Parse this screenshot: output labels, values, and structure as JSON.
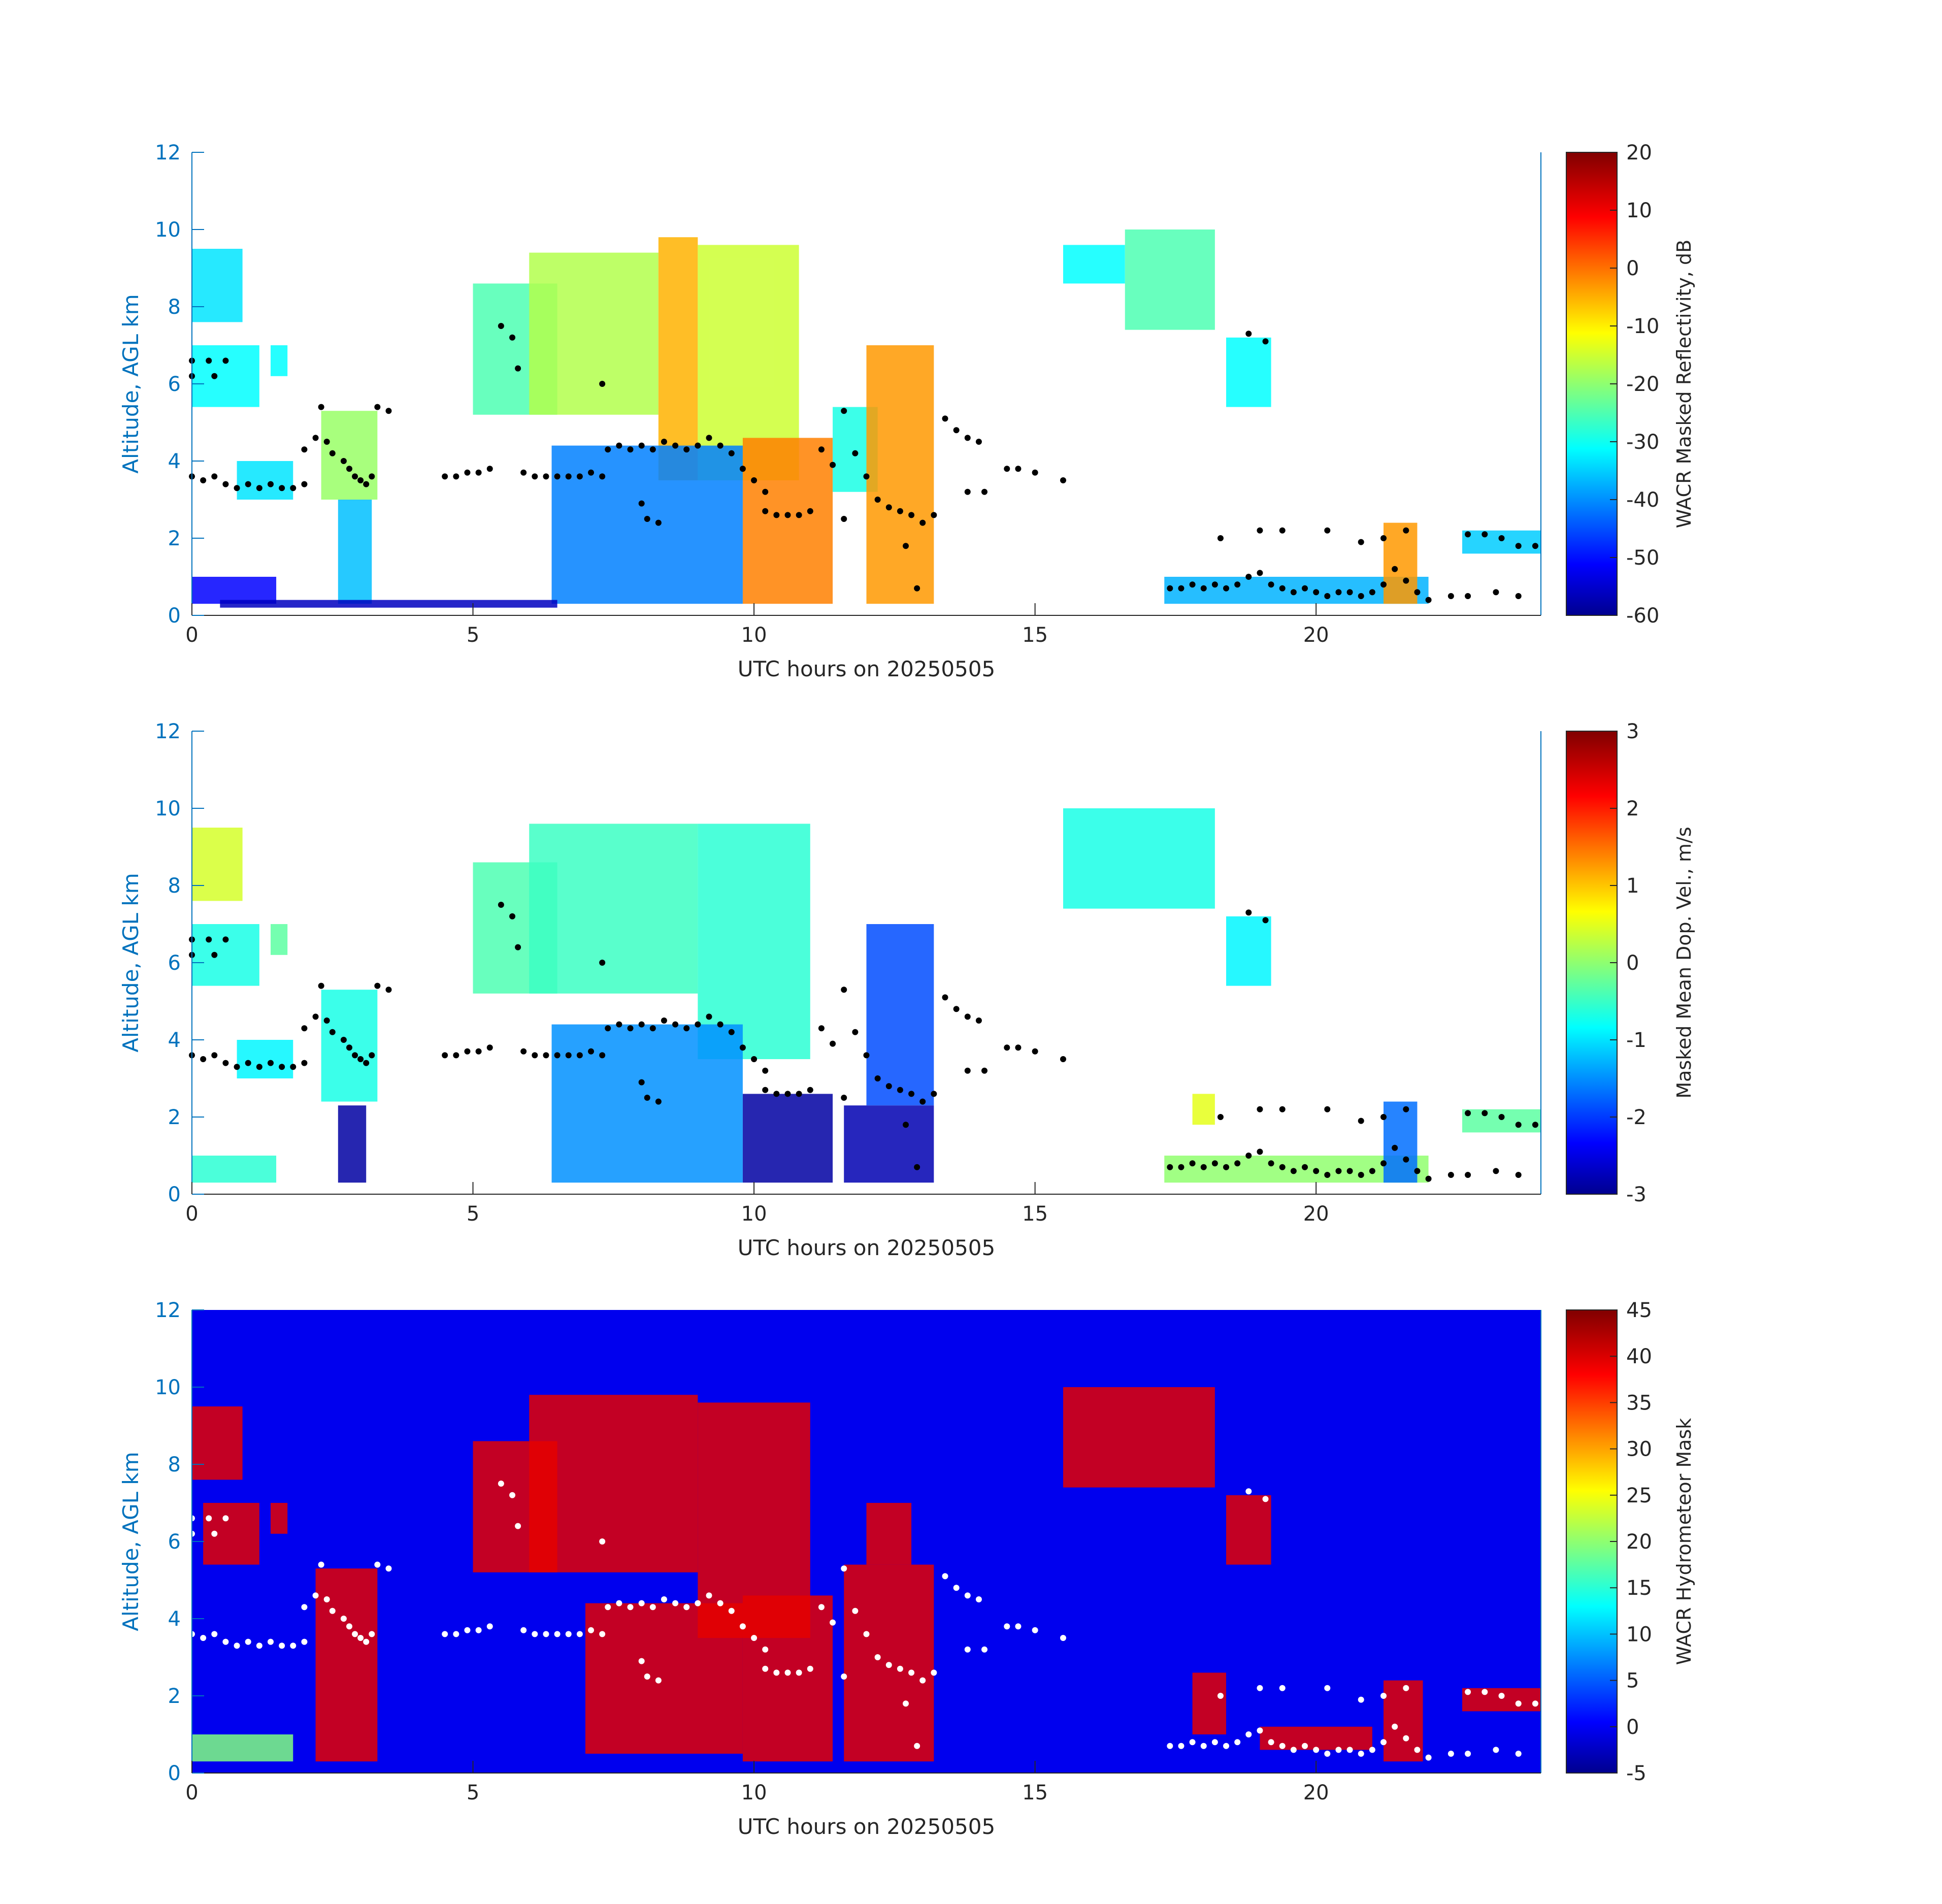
{
  "chart_data": [
    {
      "type": "heatmap",
      "xlabel": "UTC hours on 20250505",
      "ylabel": "Altitude, AGL km",
      "xlim": [
        0,
        24
      ],
      "ylim": [
        0,
        12
      ],
      "xticks": [
        "0",
        "5",
        "10",
        "15",
        "20"
      ],
      "yticks": [
        "0",
        "2",
        "4",
        "6",
        "8",
        "10",
        "12"
      ],
      "background": "white",
      "colorbar": {
        "label": "WACR Masked Reflectivity, dB",
        "colormap": "jet",
        "range": [
          -60,
          20
        ],
        "ticks": [
          "20",
          "10",
          "0",
          "-10",
          "-20",
          "-30",
          "-40",
          "-50",
          "-60"
        ]
      },
      "echo_regions": [
        {
          "x": [
            0,
            0.9
          ],
          "y": [
            7.6,
            9.5
          ],
          "value": -32
        },
        {
          "x": [
            0,
            1.2
          ],
          "y": [
            5.4,
            7.0
          ],
          "value": -30
        },
        {
          "x": [
            1.4,
            1.7
          ],
          "y": [
            6.2,
            7.0
          ],
          "value": -30
        },
        {
          "x": [
            0.8,
            1.8
          ],
          "y": [
            3.0,
            4.0
          ],
          "value": -32
        },
        {
          "x": [
            2.3,
            3.3
          ],
          "y": [
            3.0,
            5.3
          ],
          "value": -18
        },
        {
          "x": [
            2.6,
            3.2
          ],
          "y": [
            0.3,
            3.0
          ],
          "value": -35
        },
        {
          "x": [
            0,
            1.5
          ],
          "y": [
            0.3,
            1.0
          ],
          "value": -50
        },
        {
          "x": [
            5.0,
            6.5
          ],
          "y": [
            5.2,
            8.6
          ],
          "value": -24
        },
        {
          "x": [
            6.0,
            8.3
          ],
          "y": [
            5.2,
            9.4
          ],
          "value": -16
        },
        {
          "x": [
            8.3,
            9.0
          ],
          "y": [
            3.5,
            9.8
          ],
          "value": -4
        },
        {
          "x": [
            9.0,
            10.8
          ],
          "y": [
            3.5,
            9.6
          ],
          "value": -14
        },
        {
          "x": [
            9.8,
            11.4
          ],
          "y": [
            0.3,
            4.6
          ],
          "value": 0
        },
        {
          "x": [
            11.4,
            12.2
          ],
          "y": [
            3.2,
            5.4
          ],
          "value": -28
        },
        {
          "x": [
            12.0,
            13.2
          ],
          "y": [
            0.3,
            7.0
          ],
          "value": -2
        },
        {
          "x": [
            6.4,
            9.8
          ],
          "y": [
            0.3,
            4.4
          ],
          "value": -40
        },
        {
          "x": [
            15.5,
            16.6
          ],
          "y": [
            8.6,
            9.6
          ],
          "value": -30
        },
        {
          "x": [
            16.6,
            18.2
          ],
          "y": [
            7.4,
            10.0
          ],
          "value": -24
        },
        {
          "x": [
            18.4,
            19.2
          ],
          "y": [
            5.4,
            7.2
          ],
          "value": -30
        },
        {
          "x": [
            17.3,
            22.0
          ],
          "y": [
            0.3,
            1.0
          ],
          "value": -36
        },
        {
          "x": [
            21.2,
            21.8
          ],
          "y": [
            0.3,
            2.4
          ],
          "value": -2
        },
        {
          "x": [
            22.6,
            24.0
          ],
          "y": [
            1.6,
            2.2
          ],
          "value": -34
        },
        {
          "x": [
            0.5,
            6.5
          ],
          "y": [
            0.2,
            0.4
          ],
          "value": -55
        }
      ]
    },
    {
      "type": "heatmap",
      "xlabel": "UTC hours on 20250505",
      "ylabel": "Altitude, AGL km",
      "xlim": [
        0,
        24
      ],
      "ylim": [
        0,
        12
      ],
      "xticks": [
        "0",
        "5",
        "10",
        "15",
        "20"
      ],
      "yticks": [
        "0",
        "2",
        "4",
        "6",
        "8",
        "10",
        "12"
      ],
      "background": "white",
      "colorbar": {
        "label": "Masked Mean Dop. Vel., m/s",
        "colormap": "jet",
        "range": [
          -3,
          3
        ],
        "ticks": [
          "3",
          "2",
          "1",
          "0",
          "-1",
          "-2",
          "-3"
        ]
      },
      "echo_regions": [
        {
          "x": [
            0,
            0.9
          ],
          "y": [
            7.6,
            9.5
          ],
          "value": 0.5
        },
        {
          "x": [
            0,
            1.2
          ],
          "y": [
            5.4,
            7.0
          ],
          "value": -0.6
        },
        {
          "x": [
            1.4,
            1.7
          ],
          "y": [
            6.2,
            7.0
          ],
          "value": -0.2
        },
        {
          "x": [
            0.8,
            1.8
          ],
          "y": [
            3.0,
            4.0
          ],
          "value": -0.8
        },
        {
          "x": [
            2.3,
            3.3
          ],
          "y": [
            2.4,
            5.3
          ],
          "value": -0.6
        },
        {
          "x": [
            2.6,
            3.1
          ],
          "y": [
            0.3,
            2.3
          ],
          "value": -2.8
        },
        {
          "x": [
            0,
            1.5
          ],
          "y": [
            0.3,
            1.0
          ],
          "value": -0.5
        },
        {
          "x": [
            5.0,
            6.5
          ],
          "y": [
            5.2,
            8.6
          ],
          "value": -0.3
        },
        {
          "x": [
            6.0,
            9.0
          ],
          "y": [
            5.2,
            9.6
          ],
          "value": -0.4
        },
        {
          "x": [
            9.0,
            11.0
          ],
          "y": [
            3.5,
            9.6
          ],
          "value": -0.5
        },
        {
          "x": [
            9.8,
            11.4
          ],
          "y": [
            0.3,
            2.6
          ],
          "value": -2.8
        },
        {
          "x": [
            11.6,
            13.2
          ],
          "y": [
            0.3,
            2.3
          ],
          "value": -2.7
        },
        {
          "x": [
            12.0,
            13.2
          ],
          "y": [
            2.3,
            7.0
          ],
          "value": -1.8
        },
        {
          "x": [
            6.4,
            9.8
          ],
          "y": [
            0.3,
            4.4
          ],
          "value": -1.4
        },
        {
          "x": [
            15.5,
            18.2
          ],
          "y": [
            7.4,
            10.0
          ],
          "value": -0.6
        },
        {
          "x": [
            18.4,
            19.2
          ],
          "y": [
            5.4,
            7.2
          ],
          "value": -0.8
        },
        {
          "x": [
            17.3,
            22.0
          ],
          "y": [
            0.3,
            1.0
          ],
          "value": 0.1
        },
        {
          "x": [
            17.8,
            18.2
          ],
          "y": [
            1.8,
            2.6
          ],
          "value": 0.6
        },
        {
          "x": [
            21.2,
            21.8
          ],
          "y": [
            0.3,
            2.4
          ],
          "value": -1.6
        },
        {
          "x": [
            22.6,
            24.0
          ],
          "y": [
            1.6,
            2.2
          ],
          "value": -0.2
        }
      ]
    },
    {
      "type": "heatmap",
      "xlabel": "UTC hours on 20250505",
      "ylabel": "Altitude, AGL km",
      "xlim": [
        0,
        24
      ],
      "ylim": [
        0,
        12
      ],
      "xticks": [
        "0",
        "5",
        "10",
        "15",
        "20"
      ],
      "yticks": [
        "0",
        "2",
        "4",
        "6",
        "8",
        "10",
        "12"
      ],
      "background": "#0000ee",
      "colorbar": {
        "label": "WACR Hydrometeor Mask",
        "colormap": "jet",
        "range": [
          -5,
          45
        ],
        "ticks": [
          "45",
          "40",
          "35",
          "30",
          "25",
          "20",
          "15",
          "10",
          "5",
          "0",
          "-5"
        ]
      },
      "echo_regions": [
        {
          "x": [
            0,
            0.9
          ],
          "y": [
            7.6,
            9.5
          ],
          "value": 40
        },
        {
          "x": [
            0.2,
            1.2
          ],
          "y": [
            5.4,
            7.0
          ],
          "value": 40
        },
        {
          "x": [
            1.4,
            1.7
          ],
          "y": [
            6.2,
            7.0
          ],
          "value": 40
        },
        {
          "x": [
            2.2,
            3.3
          ],
          "y": [
            0.3,
            5.3
          ],
          "value": 40
        },
        {
          "x": [
            5.0,
            6.5
          ],
          "y": [
            5.2,
            8.6
          ],
          "value": 40
        },
        {
          "x": [
            6.0,
            9.0
          ],
          "y": [
            5.2,
            9.8
          ],
          "value": 40
        },
        {
          "x": [
            9.0,
            11.0
          ],
          "y": [
            3.5,
            9.6
          ],
          "value": 40
        },
        {
          "x": [
            9.8,
            11.4
          ],
          "y": [
            0.3,
            4.6
          ],
          "value": 40
        },
        {
          "x": [
            11.6,
            13.2
          ],
          "y": [
            0.3,
            5.4
          ],
          "value": 40
        },
        {
          "x": [
            12.0,
            12.8
          ],
          "y": [
            5.4,
            7.0
          ],
          "value": 40
        },
        {
          "x": [
            7.0,
            9.8
          ],
          "y": [
            0.5,
            4.4
          ],
          "value": 40
        },
        {
          "x": [
            15.5,
            18.2
          ],
          "y": [
            7.4,
            10.0
          ],
          "value": 40
        },
        {
          "x": [
            18.4,
            19.2
          ],
          "y": [
            5.4,
            7.2
          ],
          "value": 40
        },
        {
          "x": [
            17.8,
            18.4
          ],
          "y": [
            1.0,
            2.6
          ],
          "value": 40
        },
        {
          "x": [
            19.0,
            21.0
          ],
          "y": [
            0.6,
            1.2
          ],
          "value": 40
        },
        {
          "x": [
            21.2,
            21.9
          ],
          "y": [
            0.3,
            2.4
          ],
          "value": 40
        },
        {
          "x": [
            22.6,
            24.0
          ],
          "y": [
            1.6,
            2.2
          ],
          "value": 40
        },
        {
          "x": [
            0,
            1.8
          ],
          "y": [
            0.3,
            1.0
          ],
          "value": 20
        }
      ]
    }
  ],
  "overlay_points": [
    {
      "x": 0.0,
      "y": 3.6
    },
    {
      "x": 0.2,
      "y": 3.5
    },
    {
      "x": 0.4,
      "y": 3.6
    },
    {
      "x": 0.6,
      "y": 3.4
    },
    {
      "x": 0.8,
      "y": 3.3
    },
    {
      "x": 1.0,
      "y": 3.4
    },
    {
      "x": 1.2,
      "y": 3.3
    },
    {
      "x": 1.4,
      "y": 3.4
    },
    {
      "x": 1.6,
      "y": 3.3
    },
    {
      "x": 1.8,
      "y": 3.3
    },
    {
      "x": 2.0,
      "y": 3.4
    },
    {
      "x": 0.0,
      "y": 6.6
    },
    {
      "x": 0.3,
      "y": 6.6
    },
    {
      "x": 0.6,
      "y": 6.6
    },
    {
      "x": 0.0,
      "y": 6.2
    },
    {
      "x": 0.4,
      "y": 6.2
    },
    {
      "x": 2.0,
      "y": 4.3
    },
    {
      "x": 2.2,
      "y": 4.6
    },
    {
      "x": 2.4,
      "y": 4.5
    },
    {
      "x": 2.5,
      "y": 4.2
    },
    {
      "x": 2.7,
      "y": 4.0
    },
    {
      "x": 2.8,
      "y": 3.8
    },
    {
      "x": 2.9,
      "y": 3.6
    },
    {
      "x": 3.0,
      "y": 3.5
    },
    {
      "x": 3.1,
      "y": 3.4
    },
    {
      "x": 3.2,
      "y": 3.6
    },
    {
      "x": 3.3,
      "y": 5.4
    },
    {
      "x": 3.5,
      "y": 5.3
    },
    {
      "x": 2.3,
      "y": 5.4
    },
    {
      "x": 4.5,
      "y": 3.6
    },
    {
      "x": 4.7,
      "y": 3.6
    },
    {
      "x": 4.9,
      "y": 3.7
    },
    {
      "x": 5.1,
      "y": 3.7
    },
    {
      "x": 5.3,
      "y": 3.8
    },
    {
      "x": 5.5,
      "y": 7.5
    },
    {
      "x": 5.7,
      "y": 7.2
    },
    {
      "x": 5.8,
      "y": 6.4
    },
    {
      "x": 5.9,
      "y": 3.7
    },
    {
      "x": 6.1,
      "y": 3.6
    },
    {
      "x": 6.3,
      "y": 3.6
    },
    {
      "x": 6.5,
      "y": 3.6
    },
    {
      "x": 6.7,
      "y": 3.6
    },
    {
      "x": 6.9,
      "y": 3.6
    },
    {
      "x": 7.1,
      "y": 3.7
    },
    {
      "x": 7.3,
      "y": 3.6
    },
    {
      "x": 7.3,
      "y": 6.0
    },
    {
      "x": 7.4,
      "y": 4.3
    },
    {
      "x": 7.6,
      "y": 4.4
    },
    {
      "x": 7.8,
      "y": 4.3
    },
    {
      "x": 8.0,
      "y": 4.4
    },
    {
      "x": 8.2,
      "y": 4.3
    },
    {
      "x": 8.4,
      "y": 4.5
    },
    {
      "x": 8.6,
      "y": 4.4
    },
    {
      "x": 8.8,
      "y": 4.3
    },
    {
      "x": 9.0,
      "y": 4.4
    },
    {
      "x": 9.2,
      "y": 4.6
    },
    {
      "x": 9.4,
      "y": 4.4
    },
    {
      "x": 9.6,
      "y": 4.2
    },
    {
      "x": 9.8,
      "y": 3.8
    },
    {
      "x": 10.0,
      "y": 3.5
    },
    {
      "x": 10.2,
      "y": 2.7
    },
    {
      "x": 10.4,
      "y": 2.6
    },
    {
      "x": 10.6,
      "y": 2.6
    },
    {
      "x": 10.8,
      "y": 2.6
    },
    {
      "x": 11.0,
      "y": 2.7
    },
    {
      "x": 11.2,
      "y": 4.3
    },
    {
      "x": 11.4,
      "y": 3.9
    },
    {
      "x": 11.6,
      "y": 5.3
    },
    {
      "x": 11.8,
      "y": 4.2
    },
    {
      "x": 12.0,
      "y": 3.6
    },
    {
      "x": 12.2,
      "y": 3.0
    },
    {
      "x": 12.4,
      "y": 2.8
    },
    {
      "x": 12.6,
      "y": 2.7
    },
    {
      "x": 12.8,
      "y": 2.6
    },
    {
      "x": 13.0,
      "y": 2.4
    },
    {
      "x": 13.2,
      "y": 2.6
    },
    {
      "x": 12.9,
      "y": 0.7
    },
    {
      "x": 12.7,
      "y": 1.8
    },
    {
      "x": 8.1,
      "y": 2.5
    },
    {
      "x": 8.3,
      "y": 2.4
    },
    {
      "x": 8.0,
      "y": 2.9
    },
    {
      "x": 11.6,
      "y": 2.5
    },
    {
      "x": 10.2,
      "y": 3.2
    },
    {
      "x": 13.4,
      "y": 5.1
    },
    {
      "x": 13.6,
      "y": 4.8
    },
    {
      "x": 13.8,
      "y": 4.6
    },
    {
      "x": 14.0,
      "y": 4.5
    },
    {
      "x": 13.8,
      "y": 3.2
    },
    {
      "x": 14.1,
      "y": 3.2
    },
    {
      "x": 14.5,
      "y": 3.8
    },
    {
      "x": 14.7,
      "y": 3.8
    },
    {
      "x": 15.0,
      "y": 3.7
    },
    {
      "x": 15.5,
      "y": 3.5
    },
    {
      "x": 18.8,
      "y": 7.3
    },
    {
      "x": 19.1,
      "y": 7.1
    },
    {
      "x": 17.4,
      "y": 0.7
    },
    {
      "x": 17.6,
      "y": 0.7
    },
    {
      "x": 17.8,
      "y": 0.8
    },
    {
      "x": 18.0,
      "y": 0.7
    },
    {
      "x": 18.2,
      "y": 0.8
    },
    {
      "x": 18.4,
      "y": 0.7
    },
    {
      "x": 18.6,
      "y": 0.8
    },
    {
      "x": 18.8,
      "y": 1.0
    },
    {
      "x": 19.0,
      "y": 1.1
    },
    {
      "x": 19.2,
      "y": 0.8
    },
    {
      "x": 19.4,
      "y": 0.7
    },
    {
      "x": 19.6,
      "y": 0.6
    },
    {
      "x": 19.8,
      "y": 0.7
    },
    {
      "x": 20.0,
      "y": 0.6
    },
    {
      "x": 20.2,
      "y": 0.5
    },
    {
      "x": 20.4,
      "y": 0.6
    },
    {
      "x": 20.6,
      "y": 0.6
    },
    {
      "x": 20.8,
      "y": 0.5
    },
    {
      "x": 21.0,
      "y": 0.6
    },
    {
      "x": 21.2,
      "y": 0.8
    },
    {
      "x": 21.4,
      "y": 1.2
    },
    {
      "x": 21.6,
      "y": 0.9
    },
    {
      "x": 21.8,
      "y": 0.6
    },
    {
      "x": 22.0,
      "y": 0.4
    },
    {
      "x": 18.3,
      "y": 2.0
    },
    {
      "x": 19.0,
      "y": 2.2
    },
    {
      "x": 19.4,
      "y": 2.2
    },
    {
      "x": 20.2,
      "y": 2.2
    },
    {
      "x": 20.8,
      "y": 1.9
    },
    {
      "x": 21.2,
      "y": 2.0
    },
    {
      "x": 21.6,
      "y": 2.2
    },
    {
      "x": 22.7,
      "y": 2.1
    },
    {
      "x": 23.0,
      "y": 2.1
    },
    {
      "x": 23.3,
      "y": 2.0
    },
    {
      "x": 23.6,
      "y": 1.8
    },
    {
      "x": 23.9,
      "y": 1.8
    },
    {
      "x": 22.4,
      "y": 0.5
    },
    {
      "x": 22.7,
      "y": 0.5
    },
    {
      "x": 23.2,
      "y": 0.6
    },
    {
      "x": 23.6,
      "y": 0.5
    }
  ]
}
